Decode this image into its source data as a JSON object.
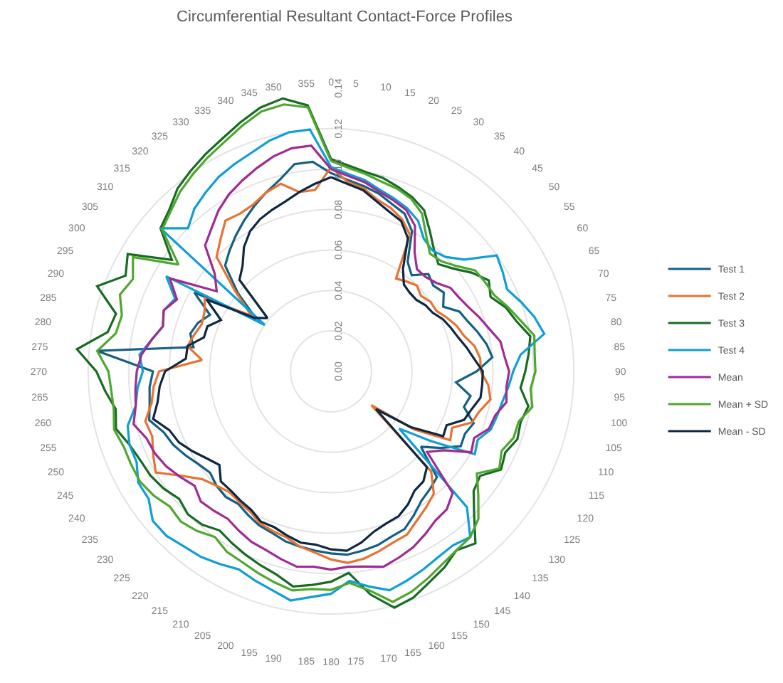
{
  "chart_data": {
    "type": "radar",
    "title": "Circumferential Resultant Contact-Force Profiles",
    "categories": [
      "0",
      "5",
      "10",
      "15",
      "20",
      "25",
      "30",
      "35",
      "40",
      "45",
      "50",
      "55",
      "60",
      "65",
      "70",
      "75",
      "80",
      "85",
      "90",
      "95",
      "100",
      "105",
      "110",
      "115",
      "120",
      "125",
      "130",
      "135",
      "140",
      "145",
      "150",
      "155",
      "160",
      "165",
      "170",
      "175",
      "180",
      "185",
      "190",
      "195",
      "200",
      "205",
      "210",
      "215",
      "220",
      "225",
      "230",
      "235",
      "240",
      "245",
      "250",
      "255",
      "260",
      "265",
      "270",
      "275",
      "280",
      "285",
      "290",
      "295",
      "300",
      "305",
      "310",
      "315",
      "320",
      "325",
      "330",
      "335",
      "340",
      "345",
      "350",
      "355"
    ],
    "ylim": [
      0,
      0.14
    ],
    "yticks": [
      {
        "value": 0,
        "label": "0.00"
      },
      {
        "value": 0.02,
        "label": "0.02"
      },
      {
        "value": 0.04,
        "label": "0.04"
      },
      {
        "value": 0.06,
        "label": "0.06"
      },
      {
        "value": 0.08,
        "label": "0.08"
      },
      {
        "value": 0.1,
        "label": "0.10"
      },
      {
        "value": 0.12,
        "label": "0.12"
      },
      {
        "value": 0.14,
        "label": "0.14"
      }
    ],
    "grid": "y",
    "legend": "right",
    "marker": "none",
    "series": [
      {
        "name": "Test 1",
        "color": "#156082",
        "values": [
          0.098,
          0.095,
          0.093,
          0.091,
          0.088,
          0.086,
          0.08,
          0.066,
          0.062,
          0.068,
          0.066,
          0.068,
          0.064,
          0.07,
          0.072,
          0.075,
          0.078,
          0.08,
          0.072,
          0.062,
          0.07,
          0.068,
          0.075,
          0.073,
          0.074,
          0.066,
          0.058,
          0.074,
          0.076,
          0.078,
          0.082,
          0.086,
          0.087,
          0.089,
          0.09,
          0.091,
          0.09,
          0.089,
          0.088,
          0.087,
          0.085,
          0.084,
          0.082,
          0.08,
          0.081,
          0.08,
          0.078,
          0.08,
          0.083,
          0.086,
          0.088,
          0.093,
          0.091,
          0.09,
          0.088,
          0.116,
          0.069,
          0.072,
          0.07,
          0.066,
          0.078,
          0.045,
          0.06,
          0.074,
          0.078,
          0.082,
          0.086,
          0.09,
          0.094,
          0.098,
          0.104,
          0.104
        ]
      },
      {
        "name": "Test 2",
        "color": "#e97132",
        "values": [
          0.101,
          0.094,
          0.092,
          0.088,
          0.086,
          0.083,
          0.078,
          0.056,
          0.058,
          0.06,
          0.058,
          0.06,
          0.06,
          0.063,
          0.066,
          0.068,
          0.072,
          0.074,
          0.074,
          0.078,
          0.08,
          0.076,
          0.074,
          0.066,
          0.068,
          0.05,
          0.026,
          0.07,
          0.079,
          0.082,
          0.085,
          0.089,
          0.09,
          0.092,
          0.094,
          0.095,
          0.093,
          0.09,
          0.088,
          0.085,
          0.084,
          0.083,
          0.08,
          0.079,
          0.078,
          0.08,
          0.083,
          0.09,
          0.1,
          0.097,
          0.094,
          0.095,
          0.09,
          0.088,
          0.085,
          0.064,
          0.072,
          0.07,
          0.068,
          0.069,
          0.072,
          0.048,
          0.062,
          0.08,
          0.085,
          0.091,
          0.09,
          0.091,
          0.094,
          0.096,
          0.09,
          0.09
        ]
      },
      {
        "name": "Test 3",
        "color": "#196b24",
        "values": [
          0.105,
          0.102,
          0.1,
          0.099,
          0.097,
          0.095,
          0.092,
          0.085,
          0.079,
          0.075,
          0.079,
          0.085,
          0.09,
          0.087,
          0.092,
          0.095,
          0.1,
          0.098,
          0.096,
          0.094,
          0.099,
          0.097,
          0.098,
          0.095,
          0.097,
          0.09,
          0.092,
          0.1,
          0.111,
          0.108,
          0.112,
          0.115,
          0.119,
          0.121,
          0.112,
          0.1,
          0.104,
          0.106,
          0.108,
          0.104,
          0.102,
          0.1,
          0.098,
          0.096,
          0.099,
          0.1,
          0.098,
          0.101,
          0.103,
          0.104,
          0.106,
          0.11,
          0.108,
          0.112,
          0.116,
          0.126,
          0.112,
          0.11,
          0.123,
          0.112,
          0.116,
          0.096,
          0.11,
          0.113,
          0.118,
          0.121,
          0.124,
          0.127,
          0.131,
          0.135,
          0.137,
          0.132
        ]
      },
      {
        "name": "Test 4",
        "color": "#0f9ed5",
        "values": [
          0.101,
          0.098,
          0.096,
          0.093,
          0.091,
          0.089,
          0.086,
          0.08,
          0.078,
          0.08,
          0.086,
          0.1,
          0.098,
          0.096,
          0.1,
          0.104,
          0.107,
          0.094,
          0.09,
          0.088,
          0.086,
          0.085,
          0.084,
          0.08,
          0.082,
          0.06,
          0.044,
          0.095,
          0.107,
          0.105,
          0.106,
          0.108,
          0.11,
          0.112,
          0.108,
          0.104,
          0.11,
          0.112,
          0.115,
          0.112,
          0.11,
          0.108,
          0.11,
          0.112,
          0.113,
          0.115,
          0.115,
          0.11,
          0.11,
          0.106,
          0.106,
          0.104,
          0.098,
          0.096,
          0.093,
          0.095,
          0.09,
          0.086,
          0.088,
          0.085,
          0.094,
          0.04,
          0.11,
          0.1,
          0.105,
          0.108,
          0.111,
          0.113,
          0.115,
          0.118,
          0.12,
          0.12
        ]
      },
      {
        "name": "Mean",
        "color": "#a02b93",
        "values": [
          0.1,
          0.097,
          0.095,
          0.092,
          0.09,
          0.088,
          0.083,
          0.072,
          0.066,
          0.066,
          0.068,
          0.072,
          0.073,
          0.075,
          0.078,
          0.081,
          0.085,
          0.086,
          0.088,
          0.087,
          0.088,
          0.084,
          0.083,
          0.078,
          0.08,
          0.068,
          0.062,
          0.085,
          0.089,
          0.09,
          0.093,
          0.096,
          0.098,
          0.1,
          0.098,
          0.097,
          0.098,
          0.097,
          0.098,
          0.096,
          0.094,
          0.093,
          0.091,
          0.089,
          0.09,
          0.091,
          0.088,
          0.091,
          0.094,
          0.096,
          0.097,
          0.101,
          0.098,
          0.097,
          0.096,
          0.094,
          0.09,
          0.086,
          0.088,
          0.084,
          0.092,
          0.069,
          0.075,
          0.088,
          0.092,
          0.097,
          0.101,
          0.104,
          0.107,
          0.11,
          0.112,
          0.112
        ]
      },
      {
        "name": "Mean + SD",
        "color": "#4ea72e",
        "values": [
          0.104,
          0.101,
          0.099,
          0.097,
          0.096,
          0.094,
          0.09,
          0.082,
          0.076,
          0.077,
          0.081,
          0.087,
          0.088,
          0.089,
          0.093,
          0.097,
          0.102,
          0.101,
          0.101,
          0.099,
          0.101,
          0.096,
          0.096,
          0.093,
          0.096,
          0.088,
          0.095,
          0.103,
          0.107,
          0.108,
          0.11,
          0.113,
          0.116,
          0.118,
          0.11,
          0.105,
          0.108,
          0.108,
          0.11,
          0.108,
          0.106,
          0.104,
          0.103,
          0.1,
          0.103,
          0.105,
          0.104,
          0.107,
          0.109,
          0.109,
          0.109,
          0.111,
          0.109,
          0.109,
          0.11,
          0.116,
          0.108,
          0.107,
          0.111,
          0.108,
          0.113,
          0.092,
          0.109,
          0.112,
          0.116,
          0.119,
          0.122,
          0.125,
          0.129,
          0.133,
          0.134,
          0.131
        ]
      },
      {
        "name": "Mean - SD",
        "color": "#0e2841",
        "values": [
          0.096,
          0.093,
          0.091,
          0.087,
          0.084,
          0.082,
          0.076,
          0.062,
          0.056,
          0.055,
          0.055,
          0.057,
          0.058,
          0.061,
          0.063,
          0.065,
          0.068,
          0.071,
          0.075,
          0.075,
          0.075,
          0.072,
          0.07,
          0.063,
          0.064,
          0.048,
          0.029,
          0.067,
          0.071,
          0.072,
          0.076,
          0.079,
          0.08,
          0.082,
          0.086,
          0.089,
          0.088,
          0.086,
          0.086,
          0.084,
          0.082,
          0.082,
          0.079,
          0.078,
          0.077,
          0.077,
          0.072,
          0.075,
          0.079,
          0.083,
          0.085,
          0.091,
          0.087,
          0.085,
          0.082,
          0.072,
          0.072,
          0.065,
          0.065,
          0.06,
          0.071,
          0.046,
          0.041,
          0.064,
          0.068,
          0.075,
          0.08,
          0.083,
          0.085,
          0.087,
          0.09,
          0.093
        ]
      }
    ]
  }
}
